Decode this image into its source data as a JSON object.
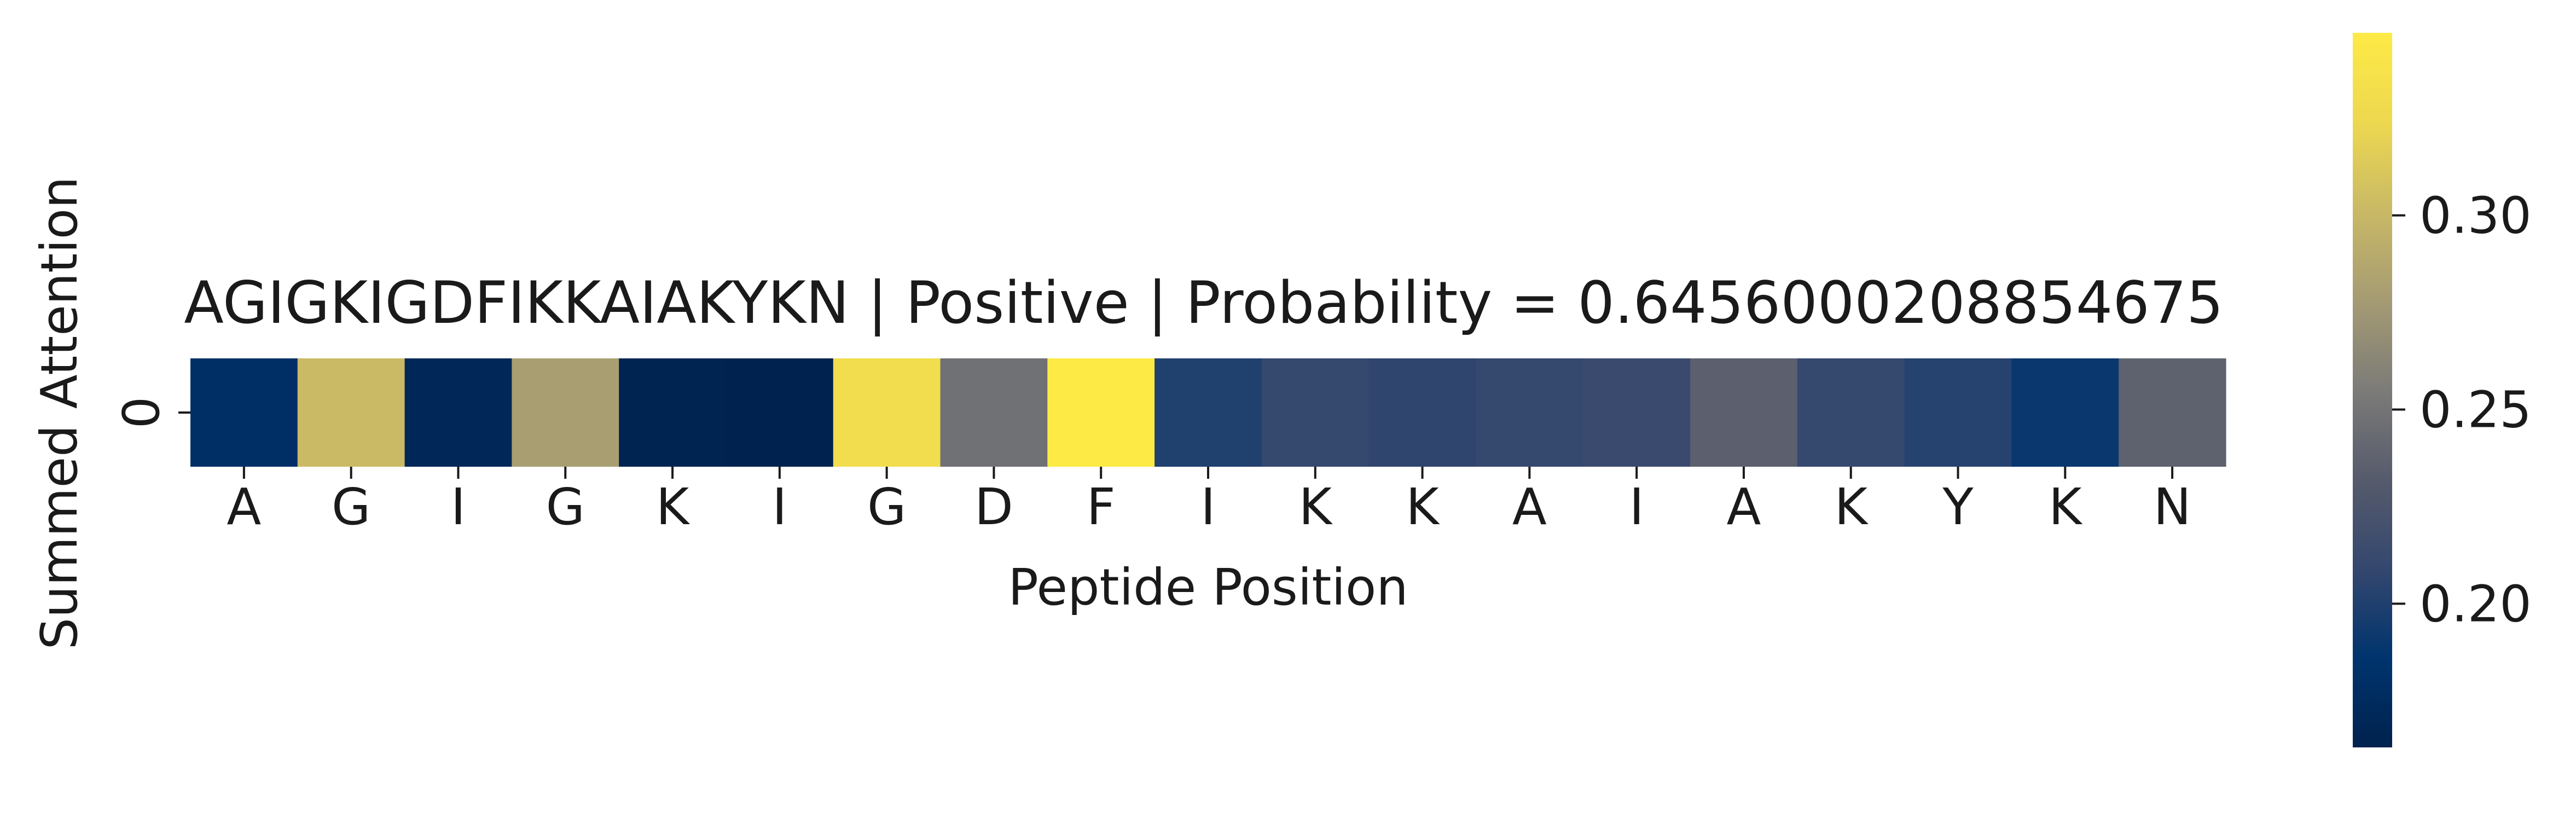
{
  "chart_data": {
    "type": "heatmap",
    "title": "AGIGKIGDFIKKAIAKYKN | Positive | Probability = 0.6456000208854675",
    "xlabel": "Peptide Position",
    "ylabel": "Summed Attention",
    "x_tick_labels": [
      "A",
      "G",
      "I",
      "G",
      "K",
      "I",
      "G",
      "D",
      "F",
      "I",
      "K",
      "K",
      "A",
      "I",
      "A",
      "K",
      "Y",
      "K",
      "N"
    ],
    "y_tick_labels": [
      "0"
    ],
    "values": [
      0.18,
      0.302,
      0.17,
      0.28,
      0.165,
      0.163,
      0.33,
      0.248,
      0.347,
      0.2,
      0.21,
      0.207,
      0.21,
      0.213,
      0.235,
      0.21,
      0.203,
      0.19,
      0.237
    ],
    "colormap": "cividis",
    "colorbar": {
      "range": [
        0.163,
        0.347
      ],
      "ticks": [
        0.2,
        0.25,
        0.3
      ],
      "tick_labels": [
        "0.20",
        "0.25",
        "0.30"
      ]
    },
    "grid": false,
    "legend": "none"
  }
}
